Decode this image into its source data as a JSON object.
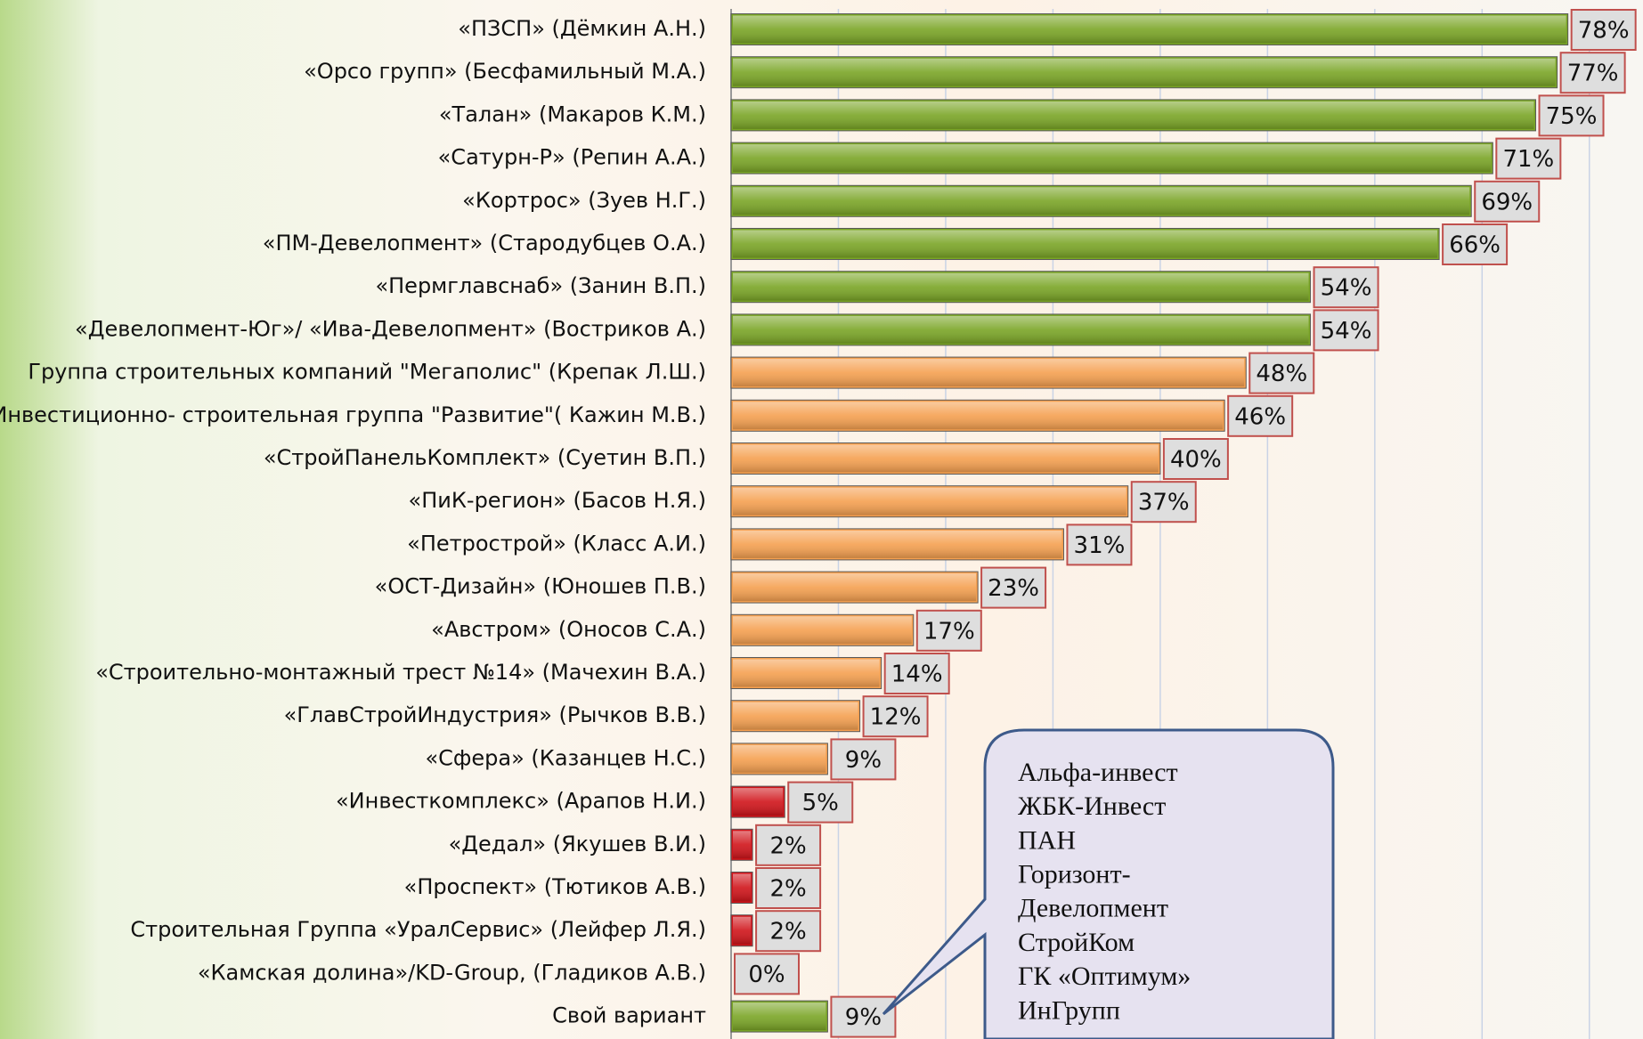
{
  "chart_data": {
    "type": "barh",
    "categories": [
      "«ПЗСП» (Дёмкин А.Н.)",
      "«Орсо групп» (Бесфамильный М.А.)",
      "«Талан» (Макаров К.М.)",
      "«Сатурн-Р» (Репин А.А.)",
      "«Кортрос» (Зуев Н.Г.)",
      "«ПМ-Девелопмент» (Стародубцев О.А.)",
      "«Пермглавснаб» (Занин В.П.)",
      "«Девелопмент-Юг»/ «Ива-Девелопмент» (Востриков А.)",
      "Группа строительных компаний \"Мегаполис\" (Крепак Л.Ш.)",
      "Инвестиционно- строительная группа \"Развитие\"( Кажин М.В.)",
      "«СтройПанельКомплект» (Суетин В.П.)",
      "«ПиК-регион» (Басов Н.Я.)",
      "«Петрострой» (Класс А.И.)",
      "«ОСТ-Дизайн» (Юношев П.В.)",
      "«Австром»   (Оносов С.А.)",
      "«Строительно-монтажный трест №14» (Мачехин В.А.)",
      "«ГлавСтройИндустрия» (Рычков В.В.)",
      "«Сфера» (Казанцев Н.С.)",
      "«Инвесткомплекс» (Арапов Н.И.)",
      "«Дедал» (Якушев В.И.)",
      "«Проспект» (Тютиков А.В.)",
      "Строительная Группа «УралСервис» (Лейфер Л.Я.)",
      "«Камская долина»/KD-Group, (Гладиков А.В.)",
      "Свой вариант"
    ],
    "values": [
      78,
      77,
      75,
      71,
      69,
      66,
      54,
      54,
      48,
      46,
      40,
      37,
      31,
      23,
      17,
      14,
      12,
      9,
      5,
      2,
      2,
      2,
      0,
      9
    ],
    "value_labels": [
      "78%",
      "77%",
      "75%",
      "71%",
      "69%",
      "66%",
      "54%",
      "54%",
      "48%",
      "46%",
      "40%",
      "37%",
      "31%",
      "23%",
      "17%",
      "14%",
      "12%",
      "9%",
      "5%",
      "2%",
      "2%",
      "2%",
      "0%",
      "9%"
    ],
    "colors": [
      "#7aa526",
      "#7aa526",
      "#7aa526",
      "#7aa526",
      "#7aa526",
      "#7aa526",
      "#7aa526",
      "#7aa526",
      "#f5a050",
      "#f5a050",
      "#f5a050",
      "#f5a050",
      "#f5a050",
      "#f5a050",
      "#f5a050",
      "#f5a050",
      "#f5a050",
      "#f5a050",
      "#d0141a",
      "#d0141a",
      "#d0141a",
      "#d0141a",
      "#d0141a",
      "#7aa526"
    ],
    "xlim": [
      0,
      85
    ],
    "xticks": [
      0,
      10,
      20,
      30,
      40,
      50,
      60,
      70,
      80
    ],
    "grid": true,
    "annotation": [
      "Альфа-инвест",
      "ЖБК-Инвест",
      "ПАН",
      "Горизонт-",
      "Девелопмент",
      "СтройКом",
      "ГК «Оптимум»",
      "ИнГрупп"
    ]
  }
}
